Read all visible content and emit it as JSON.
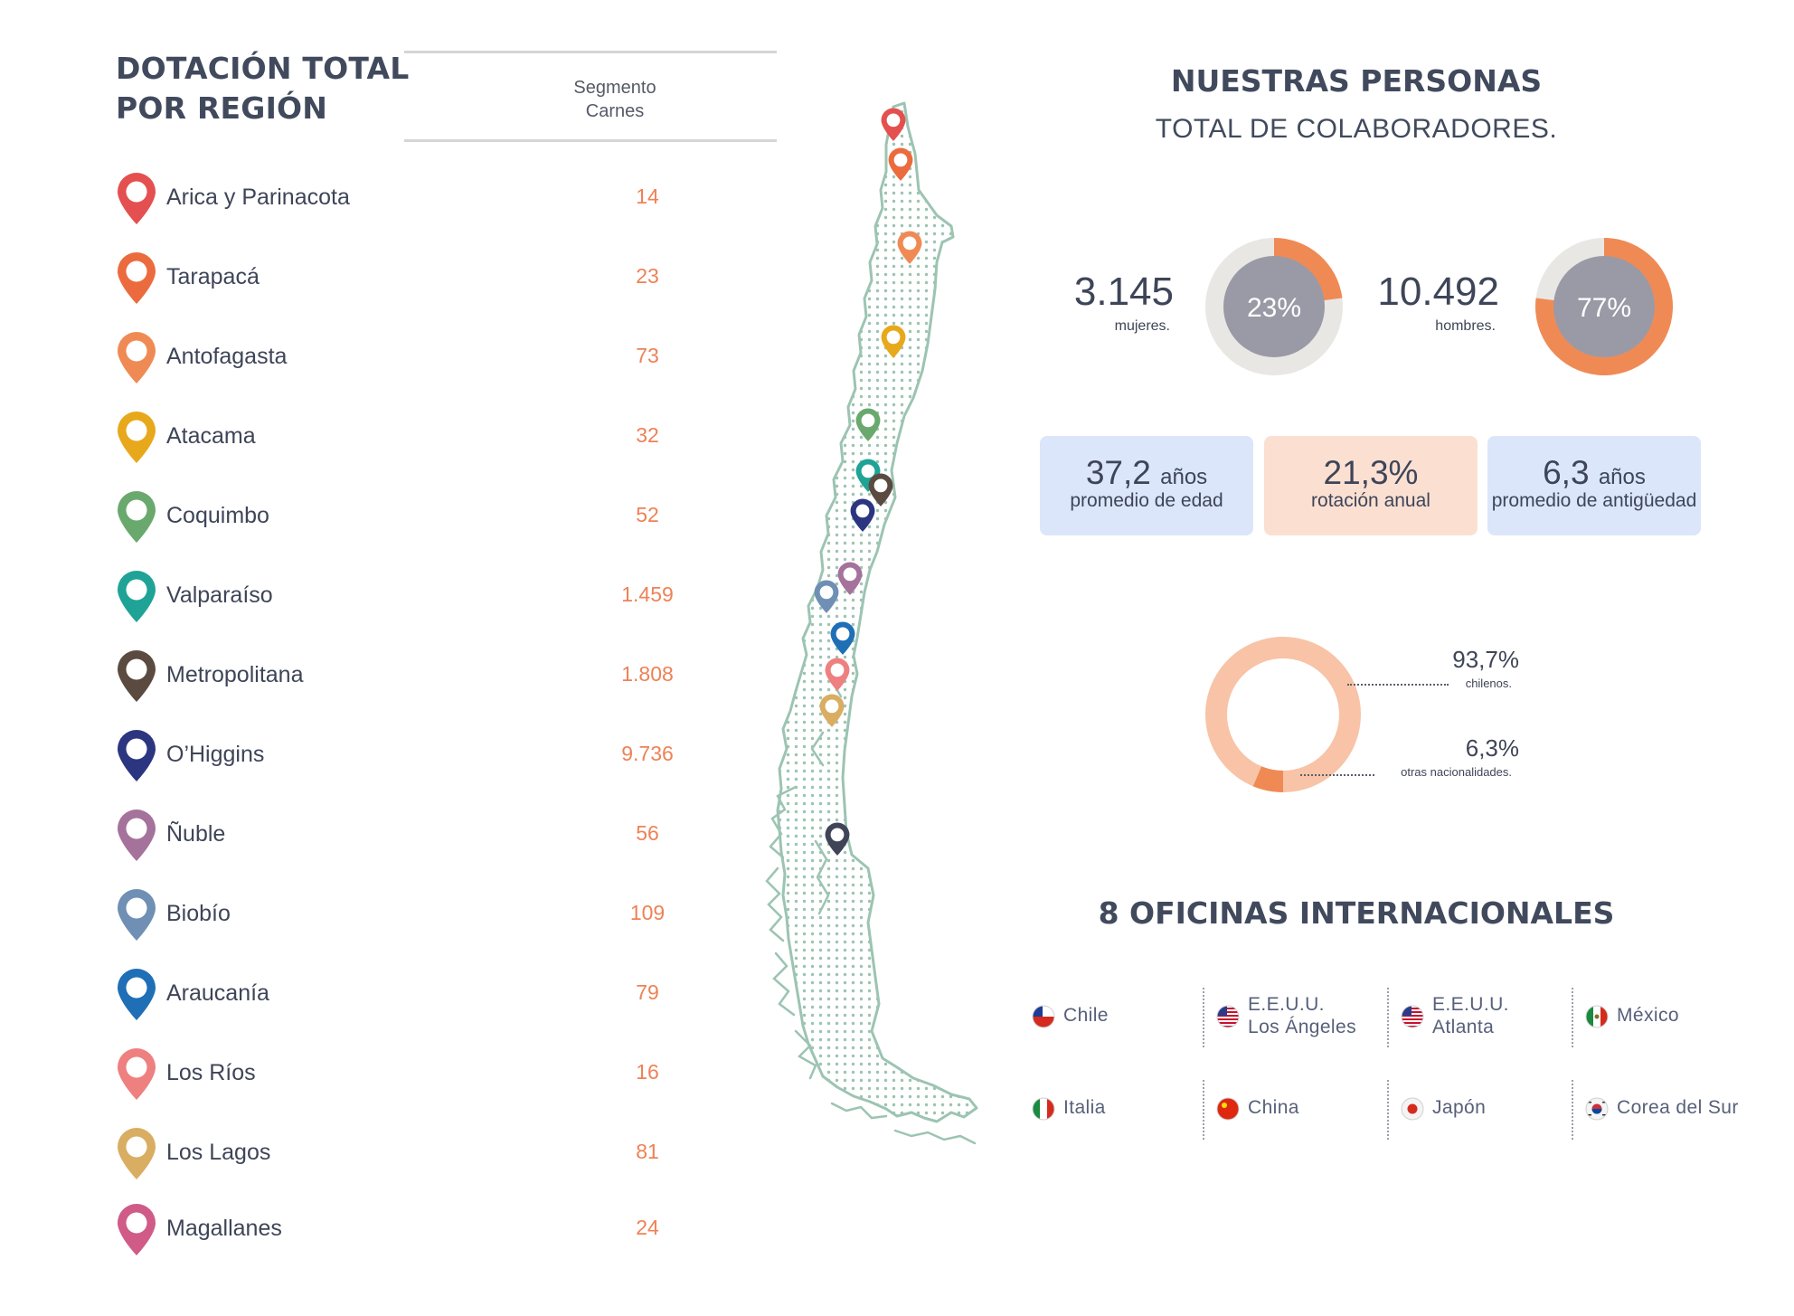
{
  "left": {
    "title_line1": "DOTACIÓN TOTAL",
    "title_line2": "POR REGIÓN",
    "segment_line1": "Segmento",
    "segment_line2": "Carnes"
  },
  "regions": [
    {
      "name": "Arica y Parinacota",
      "value": "14",
      "color": "#e4504f"
    },
    {
      "name": "Tarapacá",
      "value": "23",
      "color": "#eb6b3e"
    },
    {
      "name": "Antofagasta",
      "value": "73",
      "color": "#f08a55"
    },
    {
      "name": "Atacama",
      "value": "32",
      "color": "#e8a81b"
    },
    {
      "name": "Coquimbo",
      "value": "52",
      "color": "#69a96d"
    },
    {
      "name": "Valparaíso",
      "value": "1.459",
      "color": "#1fa396"
    },
    {
      "name": "Metropolitana",
      "value": "1.808",
      "color": "#5a4a3f"
    },
    {
      "name": "O’Higgins",
      "value": "9.736",
      "color": "#2c3580"
    },
    {
      "name": "Ñuble",
      "value": "56",
      "color": "#a5729b"
    },
    {
      "name": "Biobío",
      "value": "109",
      "color": "#6f8fb4"
    },
    {
      "name": "Araucanía",
      "value": "79",
      "color": "#1f6fb6"
    },
    {
      "name": "Los Ríos",
      "value": "16",
      "color": "#ee8080"
    },
    {
      "name": "Los Lagos",
      "value": "81",
      "color": "#d9ad62"
    },
    {
      "name": "Magallanes",
      "value": "24",
      "color": "#cf5b86"
    }
  ],
  "map": {
    "fill": "#9cc4b2",
    "extra_pin_color": "#3f4557"
  },
  "people": {
    "title": "NUESTRAS PERSONAS",
    "subtitle": "TOTAL DE COLABORADORES.",
    "women": {
      "count": "3.145",
      "label": "mujeres.",
      "pct_label": "23%",
      "pct": 23
    },
    "men": {
      "count": "10.492",
      "label": "hombres.",
      "pct_label": "77%",
      "pct": 77
    },
    "donut_center_color": "#9a9aa6",
    "donut_track_color": "#e9e7e4",
    "donut_accent_color": "#f08a55"
  },
  "stats": [
    {
      "value": "37,2",
      "unit": "años",
      "label": "promedio de edad",
      "bg": "#dbe6fb"
    },
    {
      "value": "21,3%",
      "unit": "",
      "label": "rotación anual",
      "bg": "#fbe0d2"
    },
    {
      "value": "6,3",
      "unit": "años",
      "label": "promedio de antigüedad",
      "bg": "#dbe6fb"
    }
  ],
  "nationality": {
    "chilenos_pct": "93,7%",
    "chilenos_label": "chilenos.",
    "otras_pct": "6,3%",
    "otras_label": "otras nacionalidades.",
    "share_other": 6.3,
    "main_color": "#f8c3a6",
    "other_color": "#f08a55"
  },
  "offices": {
    "title": "8 OFICINAS INTERNACIONALES",
    "items": [
      {
        "line1": "Chile",
        "line2": "",
        "flag": "chile-flag-icon"
      },
      {
        "line1": "E.E.U.U.",
        "line2": "Los Ángeles",
        "flag": "usa-flag-icon"
      },
      {
        "line1": "E.E.U.U.",
        "line2": "Atlanta",
        "flag": "usa-flag-icon"
      },
      {
        "line1": "México",
        "line2": "",
        "flag": "mexico-flag-icon"
      },
      {
        "line1": "Italia",
        "line2": "",
        "flag": "italy-flag-icon"
      },
      {
        "line1": "China",
        "line2": "",
        "flag": "china-flag-icon"
      },
      {
        "line1": "Japón",
        "line2": "",
        "flag": "japan-flag-icon"
      },
      {
        "line1": "Corea del Sur",
        "line2": "",
        "flag": "korea-flag-icon"
      }
    ]
  }
}
